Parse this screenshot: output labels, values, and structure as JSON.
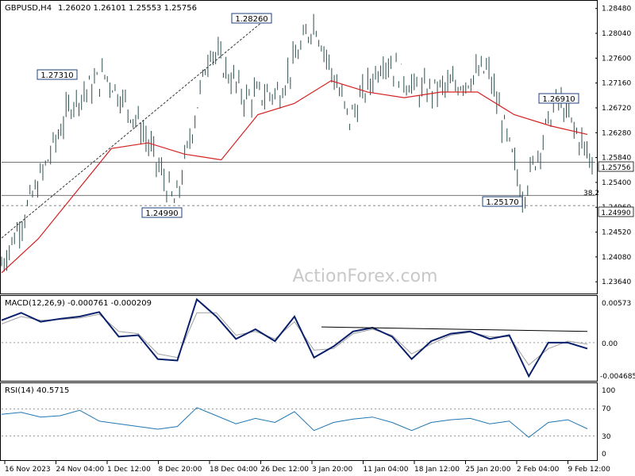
{
  "header": {
    "symbol": "GBPUSD,H4",
    "ohlc": "1.26020 1.26101 1.25553 1.25756"
  },
  "watermark": "ActionForex.com",
  "colors": {
    "price": "#2f4f4f",
    "ma": "#d62020",
    "macd": "#0a1f6b",
    "signal": "#a0a0a0",
    "rsi": "#1f77b4",
    "level": "#606060"
  },
  "price_axis_ticks": [
    "1.28480",
    "1.28040",
    "1.27600",
    "1.27160",
    "1.26720",
    "1.26280",
    "1.25840",
    "1.25400",
    "1.24960",
    "1.24520",
    "1.24080",
    "1.23640"
  ],
  "x_axis_ticks": [
    "16 Nov 2023",
    "24 Nov 04:00",
    "1 Dec 12:00",
    "8 Dec 20:00",
    "18 Dec 04:00",
    "26 Dec 12:00",
    "3 Jan 20:00",
    "11 Jan 04:00",
    "18 Jan 12:00",
    "25 Jan 20:00",
    "2 Feb 04:00",
    "9 Feb 12:00"
  ],
  "annotations": {
    "high_1": "1.28260",
    "high_2": "1.27310",
    "high_3": "1.26910",
    "low_1": "1.24990",
    "low_2": "1.25170",
    "current": "1.25756",
    "support": "1.24990",
    "fib": "38.2"
  },
  "macd": {
    "label": "MACD(12,26,9) -0.000761 -0.000209",
    "ticks": [
      "0.00573",
      "0.00",
      "-0.004685"
    ]
  },
  "rsi": {
    "label": "RSI(14) 40.5715",
    "ticks": [
      "100",
      "70",
      "30",
      "0"
    ]
  },
  "chart_data": [
    {
      "type": "candlestick",
      "title": "GBPUSD,H4",
      "x_range": [
        "16 Nov 2023",
        "13 Feb 2024"
      ],
      "ylim": [
        1.2346,
        1.2856
      ],
      "key_points": [
        {
          "x": "16 Nov 2023",
          "close": 1.2395
        },
        {
          "x": "21 Nov",
          "close": 1.253
        },
        {
          "x": "24 Nov 04:00",
          "close": 1.268
        },
        {
          "x": "29 Nov",
          "high": 1.2731
        },
        {
          "x": "1 Dec 12:00",
          "close": 1.264
        },
        {
          "x": "8 Dec 20:00",
          "low": 1.2499
        },
        {
          "x": "14 Dec",
          "close": 1.278
        },
        {
          "x": "18 Dec 04:00",
          "close": 1.269
        },
        {
          "x": "22 Dec",
          "close": 1.27
        },
        {
          "x": "28 Dec",
          "high": 1.2826
        },
        {
          "x": "3 Jan 20:00",
          "close": 1.265
        },
        {
          "x": "11 Jan 04:00",
          "close": 1.276
        },
        {
          "x": "18 Jan 12:00",
          "close": 1.27
        },
        {
          "x": "25 Jan 20:00",
          "close": 1.271
        },
        {
          "x": "2 Feb 04:00",
          "close": 1.274
        },
        {
          "x": "5 Feb",
          "low": 1.2517
        },
        {
          "x": "9 Feb 12:00",
          "high": 1.2691
        },
        {
          "x": "13 Feb",
          "close": 1.25756
        }
      ],
      "series": [
        {
          "name": "Moving average",
          "values": [
            1.238,
            1.244,
            1.252,
            1.26,
            1.261,
            1.259,
            1.258,
            1.266,
            1.268,
            1.272,
            1.27,
            1.269,
            1.27,
            1.27,
            1.266,
            1.264,
            1.2625
          ]
        }
      ],
      "horizontal_lines": [
        {
          "value": 1.25756
        },
        {
          "value": 1.2517,
          "label": "38.2"
        },
        {
          "value": 1.2499,
          "style": "dashed"
        }
      ]
    },
    {
      "type": "line",
      "title": "MACD(12,26,9) -0.000761 -0.000209",
      "ylim": [
        -0.004685,
        0.00573
      ],
      "series": [
        {
          "values": [
            0.003,
            0.004,
            0.0028,
            0.0032,
            0.0035,
            0.0041,
            0.0008,
            0.001,
            -0.0022,
            -0.0024,
            0.0058,
            0.0035,
            0.0005,
            0.0018,
            0.0002,
            0.0035,
            -0.002,
            -0.0005,
            0.0015,
            0.002,
            0.0008,
            -0.0022,
            0.0002,
            0.0012,
            0.0015,
            0.0005,
            0.001,
            -0.0045,
            0.0,
            0.0,
            -0.0008
          ]
        },
        {
          "values": [
            0.0025,
            0.0035,
            0.003,
            0.0031,
            0.0033,
            0.0038,
            0.0015,
            0.0012,
            -0.0015,
            -0.002,
            0.004,
            0.004,
            0.001,
            0.0015,
            0.0005,
            0.0028,
            -0.001,
            -0.0008,
            0.0012,
            0.0018,
            0.001,
            -0.0015,
            -0.0002,
            0.001,
            0.0014,
            0.0008,
            0.0008,
            -0.003,
            -0.0008,
            0.0002,
            -0.0002
          ]
        }
      ]
    },
    {
      "type": "line",
      "title": "RSI(14) 40.5715",
      "ylim": [
        0,
        100
      ],
      "series": [
        {
          "values": [
            62,
            65,
            58,
            60,
            68,
            52,
            48,
            44,
            40,
            44,
            72,
            60,
            48,
            56,
            50,
            66,
            38,
            50,
            55,
            58,
            50,
            38,
            50,
            54,
            56,
            48,
            52,
            28,
            50,
            54,
            40.57
          ]
        }
      ]
    }
  ]
}
